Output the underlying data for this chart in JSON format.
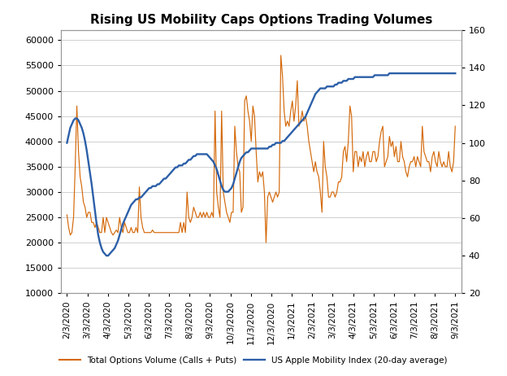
{
  "title": "Rising US Mobility Caps Options Trading Volumes",
  "title_fontsize": 11,
  "left_ylim": [
    10000,
    62000
  ],
  "right_ylim": [
    20,
    160
  ],
  "left_yticks": [
    10000,
    15000,
    20000,
    25000,
    30000,
    35000,
    40000,
    45000,
    50000,
    55000,
    60000
  ],
  "right_yticks": [
    20,
    40,
    60,
    80,
    100,
    120,
    140,
    160
  ],
  "xtick_labels": [
    "2/3/2020",
    "3/3/2020",
    "4/3/2020",
    "5/3/2020",
    "6/3/2020",
    "7/3/2020",
    "8/3/2020",
    "9/3/2020",
    "10/3/2020",
    "11/3/2020",
    "12/3/2020",
    "1/3/2021",
    "2/3/2021",
    "3/3/2021",
    "4/3/2021",
    "5/3/2021",
    "6/3/2021",
    "7/3/2021",
    "8/3/2021",
    "9/3/2021"
  ],
  "orange_color": "#D4690A",
  "blue_color": "#2C5FA8",
  "legend_orange": "Total Options Volume (Calls + Puts)",
  "legend_blue": "US Apple Mobility Index (20-day average)",
  "background_color": "#FFFFFF",
  "grid_color": "#D0D0D0",
  "options_volume": [
    25500,
    23000,
    21500,
    22000,
    25000,
    35000,
    47000,
    38000,
    33000,
    31000,
    28000,
    27000,
    25000,
    26000,
    26000,
    24000,
    24000,
    23000,
    24000,
    23000,
    22000,
    22000,
    25000,
    22000,
    25000,
    24000,
    23000,
    22000,
    21500,
    22000,
    22500,
    22000,
    25000,
    23000,
    22000,
    24000,
    23000,
    22000,
    22000,
    23000,
    22000,
    22000,
    23000,
    22000,
    31000,
    25000,
    23000,
    22000,
    22000,
    22000,
    22000,
    22000,
    22500,
    22000,
    22000,
    22000,
    22000,
    22000,
    22000,
    22000,
    22000,
    22000,
    22000,
    22000,
    22000,
    22000,
    22000,
    22000,
    22000,
    24000,
    22000,
    24000,
    22000,
    30000,
    25000,
    24000,
    25000,
    27000,
    26000,
    25000,
    25000,
    26000,
    25000,
    26000,
    25000,
    26000,
    25000,
    25000,
    26000,
    25000,
    46000,
    30000,
    27000,
    25000,
    46000,
    30000,
    28000,
    26000,
    25000,
    24000,
    26000,
    26000,
    43000,
    38000,
    35000,
    34000,
    26000,
    27000,
    48000,
    49000,
    46000,
    44000,
    40000,
    47000,
    45000,
    38000,
    32000,
    34000,
    33000,
    34000,
    30000,
    20000,
    29000,
    30000,
    29000,
    28000,
    29000,
    30000,
    29000,
    30000,
    57000,
    53000,
    46000,
    43000,
    44000,
    43000,
    46000,
    48000,
    44000,
    47000,
    52000,
    43000,
    44000,
    46000,
    44000,
    45000,
    43000,
    40000,
    38000,
    36000,
    34000,
    36000,
    34000,
    33000,
    30000,
    26000,
    40000,
    35000,
    33000,
    29000,
    29000,
    30000,
    30000,
    29000,
    30000,
    32000,
    32000,
    33000,
    38000,
    39000,
    36000,
    40000,
    47000,
    45000,
    34000,
    38000,
    38000,
    35000,
    37000,
    36000,
    38000,
    35000,
    37000,
    38000,
    36000,
    36000,
    38000,
    38000,
    36000,
    37000,
    40000,
    42000,
    43000,
    35000,
    36000,
    37000,
    41000,
    39000,
    40000,
    37000,
    39000,
    36000,
    36000,
    40000,
    37000,
    36000,
    34000,
    33000,
    35000,
    36000,
    36000,
    37000,
    35000,
    37000,
    36000,
    35000,
    43000,
    38000,
    37000,
    36000,
    36000,
    34000,
    37000,
    38000,
    36000,
    35000,
    38000,
    36000,
    35000,
    36000,
    35000,
    35000,
    38000,
    35000,
    34000,
    36000,
    43000
  ],
  "mobility_index": [
    100,
    104,
    108,
    110,
    112,
    113,
    113,
    112,
    110,
    108,
    105,
    101,
    96,
    90,
    84,
    78,
    71,
    64,
    57,
    51,
    47,
    44,
    42,
    41,
    40,
    40,
    41,
    42,
    43,
    44,
    46,
    48,
    51,
    54,
    57,
    59,
    61,
    63,
    65,
    67,
    68,
    69,
    70,
    70,
    71,
    71,
    72,
    73,
    74,
    75,
    76,
    76,
    77,
    77,
    77,
    78,
    78,
    79,
    80,
    81,
    81,
    82,
    83,
    84,
    85,
    86,
    87,
    87,
    88,
    88,
    88,
    89,
    89,
    90,
    91,
    91,
    92,
    93,
    93,
    94,
    94,
    94,
    94,
    94,
    94,
    94,
    93,
    92,
    91,
    90,
    88,
    86,
    83,
    80,
    77,
    75,
    74,
    74,
    74,
    75,
    76,
    78,
    81,
    84,
    87,
    90,
    92,
    93,
    94,
    95,
    95,
    96,
    97,
    97,
    97,
    97,
    97,
    97,
    97,
    97,
    97,
    97,
    97,
    98,
    98,
    99,
    99,
    100,
    100,
    100,
    100,
    101,
    101,
    102,
    103,
    104,
    105,
    106,
    107,
    108,
    109,
    110,
    111,
    112,
    113,
    114,
    116,
    118,
    120,
    122,
    124,
    126,
    127,
    128,
    129,
    129,
    129,
    129,
    130,
    130,
    130,
    130,
    130,
    131,
    131,
    132,
    132,
    132,
    133,
    133,
    133,
    134,
    134,
    134,
    134,
    135,
    135,
    135,
    135,
    135,
    135,
    135,
    135,
    135,
    135,
    135,
    135,
    136,
    136,
    136,
    136,
    136,
    136,
    136,
    136,
    136,
    137,
    137,
    137,
    137,
    137,
    137,
    137,
    137,
    137,
    137,
    137,
    137,
    137,
    137,
    137,
    137,
    137,
    137,
    137,
    137,
    137,
    137,
    137,
    137,
    137,
    137,
    137,
    137,
    137,
    137,
    137,
    137,
    137,
    137,
    137,
    137,
    137,
    137,
    137,
    137,
    137
  ]
}
